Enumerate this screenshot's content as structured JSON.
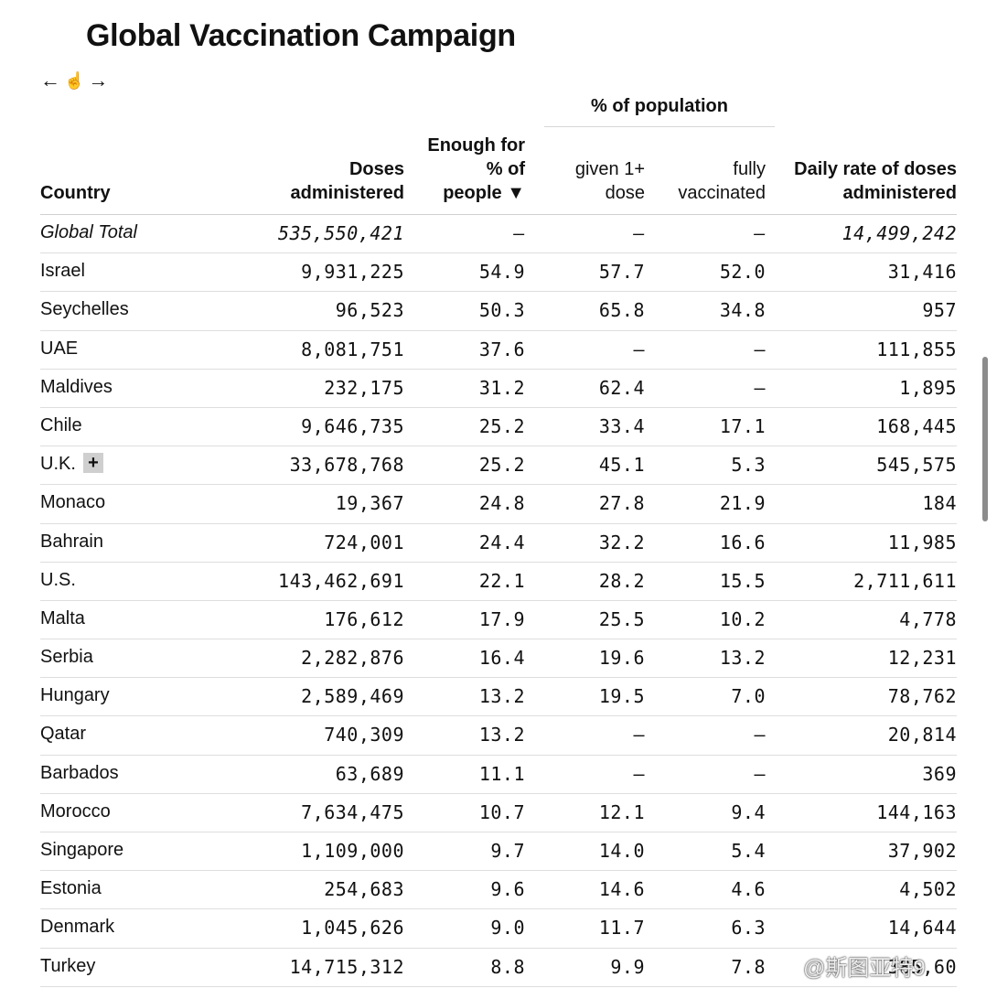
{
  "title": "Global Vaccination Campaign",
  "scroll_hint": {
    "left_arrow": "←",
    "hand": "☝",
    "right_arrow": "→"
  },
  "header": {
    "group_label": "% of population",
    "country": "Country",
    "doses_line1": "Doses",
    "doses_line2": "administered",
    "enough_line1": "Enough for",
    "enough_line2": "% of",
    "enough_line3": "people ▼",
    "given_line1": "given 1+",
    "given_line2": "dose",
    "fully_line1": "fully",
    "fully_line2": "vaccinated",
    "daily_line1": "Daily rate of doses",
    "daily_line2": "administered"
  },
  "rows": [
    {
      "country": "Global Total",
      "doses": "535,550,421",
      "enough": "–",
      "given": "–",
      "fully": "–",
      "daily": "14,499,242"
    },
    {
      "country": "Israel",
      "doses": "9,931,225",
      "enough": "54.9",
      "given": "57.7",
      "fully": "52.0",
      "daily": "31,416"
    },
    {
      "country": "Seychelles",
      "doses": "96,523",
      "enough": "50.3",
      "given": "65.8",
      "fully": "34.8",
      "daily": "957"
    },
    {
      "country": "UAE",
      "doses": "8,081,751",
      "enough": "37.6",
      "given": "–",
      "fully": "–",
      "daily": "111,855"
    },
    {
      "country": "Maldives",
      "doses": "232,175",
      "enough": "31.2",
      "given": "62.4",
      "fully": "–",
      "daily": "1,895"
    },
    {
      "country": "Chile",
      "doses": "9,646,735",
      "enough": "25.2",
      "given": "33.4",
      "fully": "17.1",
      "daily": "168,445"
    },
    {
      "country": "U.K.",
      "doses": "33,678,768",
      "enough": "25.2",
      "given": "45.1",
      "fully": "5.3",
      "daily": "545,575",
      "expand": "+"
    },
    {
      "country": "Monaco",
      "doses": "19,367",
      "enough": "24.8",
      "given": "27.8",
      "fully": "21.9",
      "daily": "184"
    },
    {
      "country": "Bahrain",
      "doses": "724,001",
      "enough": "24.4",
      "given": "32.2",
      "fully": "16.6",
      "daily": "11,985"
    },
    {
      "country": "U.S.",
      "doses": "143,462,691",
      "enough": "22.1",
      "given": "28.2",
      "fully": "15.5",
      "daily": "2,711,611"
    },
    {
      "country": "Malta",
      "doses": "176,612",
      "enough": "17.9",
      "given": "25.5",
      "fully": "10.2",
      "daily": "4,778"
    },
    {
      "country": "Serbia",
      "doses": "2,282,876",
      "enough": "16.4",
      "given": "19.6",
      "fully": "13.2",
      "daily": "12,231"
    },
    {
      "country": "Hungary",
      "doses": "2,589,469",
      "enough": "13.2",
      "given": "19.5",
      "fully": "7.0",
      "daily": "78,762"
    },
    {
      "country": "Qatar",
      "doses": "740,309",
      "enough": "13.2",
      "given": "–",
      "fully": "–",
      "daily": "20,814"
    },
    {
      "country": "Barbados",
      "doses": "63,689",
      "enough": "11.1",
      "given": "–",
      "fully": "–",
      "daily": "369"
    },
    {
      "country": "Morocco",
      "doses": "7,634,475",
      "enough": "10.7",
      "given": "12.1",
      "fully": "9.4",
      "daily": "144,163"
    },
    {
      "country": "Singapore",
      "doses": "1,109,000",
      "enough": "9.7",
      "given": "14.0",
      "fully": "5.4",
      "daily": "37,902"
    },
    {
      "country": "Estonia",
      "doses": "254,683",
      "enough": "9.6",
      "given": "14.6",
      "fully": "4.6",
      "daily": "4,502"
    },
    {
      "country": "Denmark",
      "doses": "1,045,626",
      "enough": "9.0",
      "given": "11.7",
      "fully": "6.3",
      "daily": "14,644"
    },
    {
      "country": "Turkey",
      "doses": "14,715,312",
      "enough": "8.8",
      "given": "9.9",
      "fully": "7.8",
      "daily": "385,60"
    }
  ],
  "watermark": "@斯图亚特9"
}
